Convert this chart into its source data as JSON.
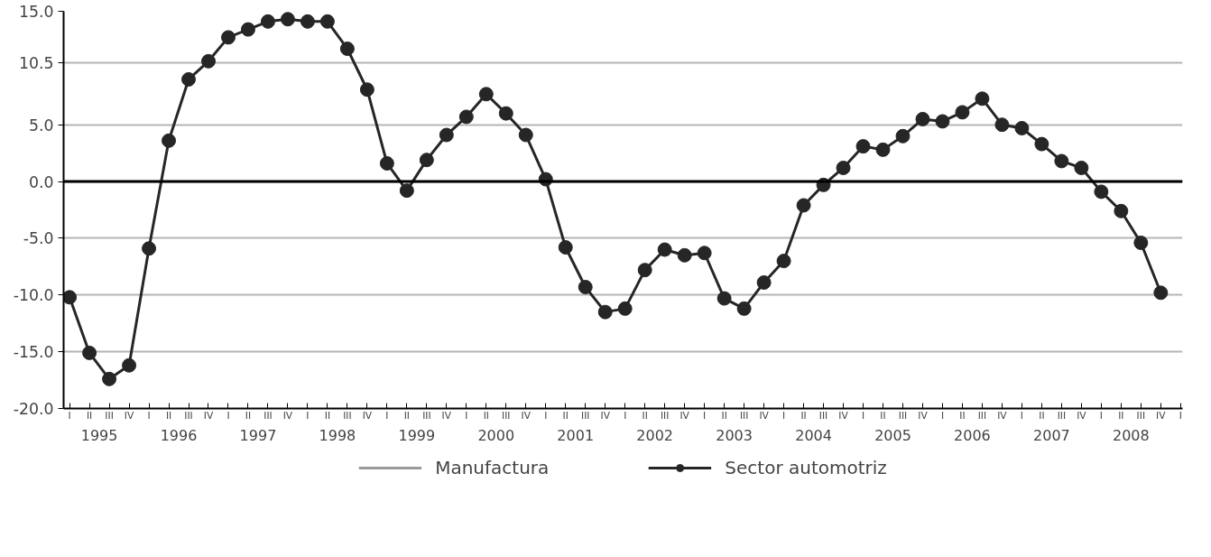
{
  "chart_data": {
    "type": "line",
    "categories": [
      "I",
      "II",
      "III",
      "IV",
      "I",
      "II",
      "III",
      "IV",
      "I",
      "II",
      "III",
      "IV",
      "I",
      "II",
      "III",
      "IV",
      "I",
      "II",
      "III",
      "IV",
      "I",
      "II",
      "III",
      "IV",
      "I",
      "II",
      "III",
      "IV",
      "I",
      "II",
      "III",
      "IV",
      "I",
      "II",
      "III",
      "IV",
      "I",
      "II",
      "III",
      "IV",
      "I",
      "II",
      "III",
      "IV",
      "I",
      "II",
      "III",
      "IV",
      "I",
      "II",
      "III",
      "IV",
      "I",
      "II",
      "III",
      "IV",
      "I"
    ],
    "series": [
      {
        "name": "Manufactura",
        "color": "#9a9a9a",
        "marker": "none",
        "values": [
          null,
          null,
          null,
          null,
          null,
          null,
          null,
          null,
          null,
          null,
          null,
          null,
          null,
          null,
          null,
          null,
          null,
          null,
          null,
          null,
          null,
          null,
          null,
          null,
          null,
          null,
          null,
          null,
          null,
          null,
          null,
          null,
          null,
          null,
          null,
          null,
          null,
          null,
          null,
          null,
          null,
          null,
          null,
          null,
          null,
          null,
          null,
          null,
          null,
          null,
          null,
          null,
          null,
          null,
          null,
          null,
          null
        ]
      },
      {
        "name": "Sector automotriz",
        "color": "#262626",
        "marker": "circle",
        "values": [
          -10.2,
          -15.1,
          -17.4,
          -16.2,
          -5.9,
          3.6,
          9.0,
          10.6,
          12.7,
          13.4,
          14.1,
          14.3,
          14.1,
          14.1,
          11.7,
          8.1,
          1.6,
          -0.8,
          1.9,
          4.1,
          5.7,
          7.7,
          6.0,
          4.1,
          0.2,
          -5.8,
          -9.3,
          -11.5,
          -11.2,
          -7.8,
          -6.0,
          -6.5,
          -6.3,
          -10.3,
          -11.2,
          -8.9,
          -7.0,
          -2.1,
          -0.3,
          1.2,
          3.1,
          2.8,
          4.0,
          5.5,
          5.3,
          6.1,
          7.3,
          5.0,
          4.7,
          3.3,
          1.8,
          1.2,
          -0.9,
          -2.6,
          -5.4,
          -9.8,
          null
        ]
      }
    ],
    "ylim": [
      -20,
      15
    ],
    "yticks": [
      {
        "value": -20,
        "label": "-20.0"
      },
      {
        "value": -15,
        "label": "-15.0"
      },
      {
        "value": -10,
        "label": "-10.0"
      },
      {
        "value": -5,
        "label": "-5.0"
      },
      {
        "value": 0,
        "label": "0.0"
      },
      {
        "value": 5,
        "label": "5.0"
      },
      {
        "value": 10.5,
        "label": "10.5"
      },
      {
        "value": 15,
        "label": "15.0"
      }
    ],
    "grid": "y",
    "legend": "bottom",
    "ref_lines": [
      {
        "axis": "y",
        "value": 0,
        "color": "#000000"
      }
    ],
    "annotations": [
      "1995",
      "1996",
      "1997",
      "1998",
      "1999",
      "2000",
      "2001",
      "2002",
      "2003",
      "2004",
      "2005",
      "2006",
      "2007",
      "2008"
    ]
  }
}
